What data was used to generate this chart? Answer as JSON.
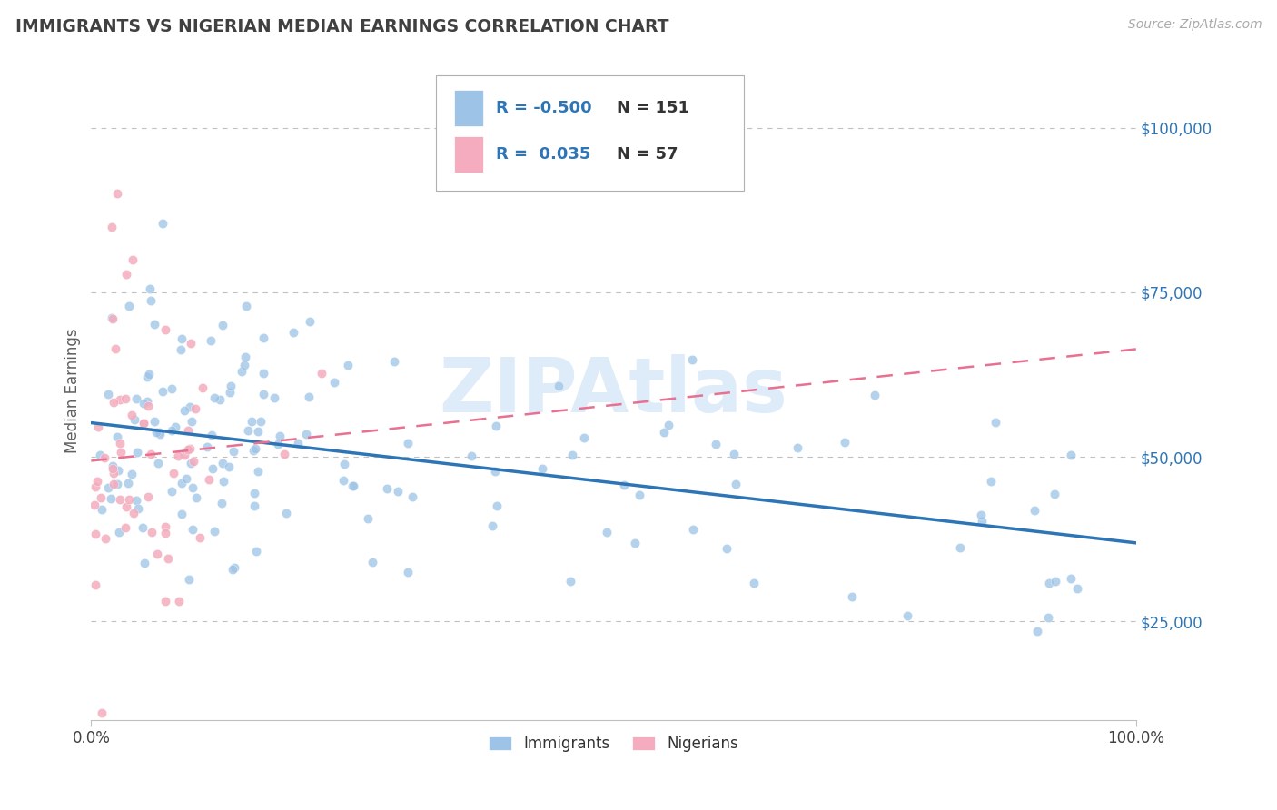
{
  "title": "IMMIGRANTS VS NIGERIAN MEDIAN EARNINGS CORRELATION CHART",
  "source": "Source: ZipAtlas.com",
  "ylabel": "Median Earnings",
  "xlim": [
    0,
    1.0
  ],
  "ylim": [
    10000,
    110000
  ],
  "yticks": [
    25000,
    50000,
    75000,
    100000
  ],
  "ytick_labels": [
    "$25,000",
    "$50,000",
    "$75,000",
    "$100,000"
  ],
  "xticks": [
    0.0,
    1.0
  ],
  "xtick_labels": [
    "0.0%",
    "100.0%"
  ],
  "blue_color": "#9dc3e6",
  "pink_color": "#f4acbe",
  "blue_line_color": "#2e75b6",
  "pink_line_color": "#e87090",
  "grid_color": "#c0c0c0",
  "title_color": "#404040",
  "axis_label_color": "#606060",
  "ytick_color": "#2e75b6",
  "watermark": "ZIPAtlas",
  "watermark_color": "#c8dff5",
  "legend_r_blue": "-0.500",
  "legend_n_blue": "151",
  "legend_r_pink": "0.035",
  "legend_n_pink": "57",
  "random_seed_blue": 42,
  "random_seed_pink": 7
}
